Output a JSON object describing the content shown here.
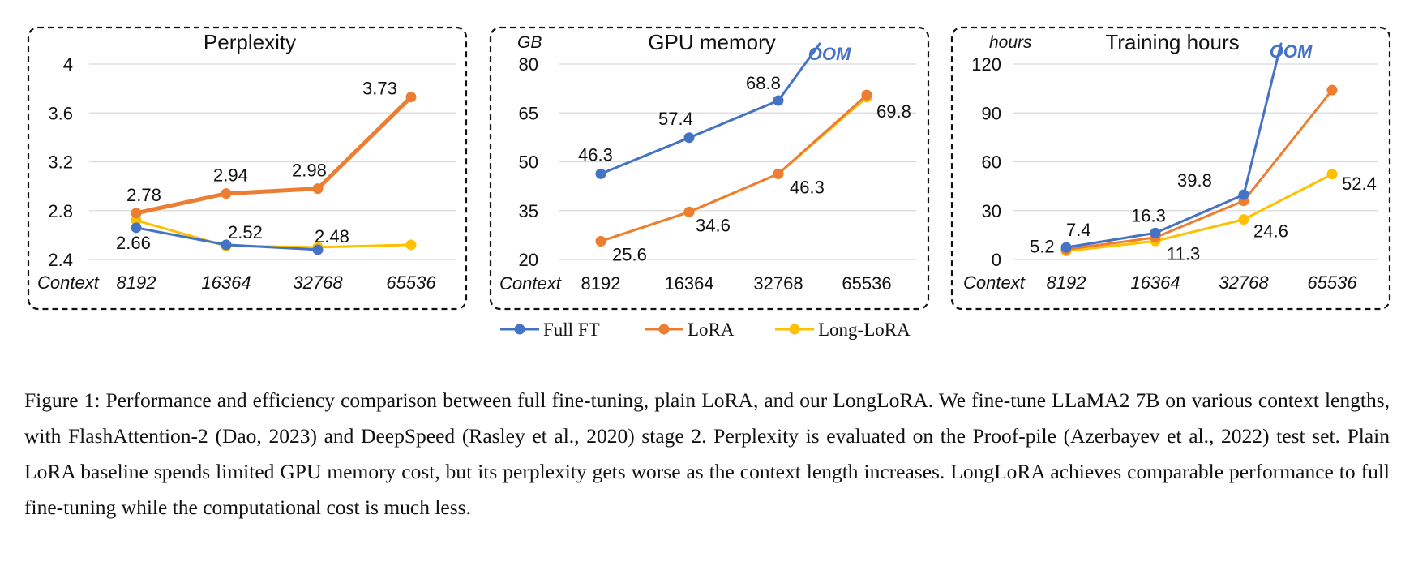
{
  "chart_data": [
    {
      "type": "line",
      "title": "Perplexity",
      "unit": "",
      "xlabel": "Context",
      "xlabel_italic": true,
      "categories": [
        "8192",
        "16364",
        "32768",
        "65536"
      ],
      "ylim": [
        2.4,
        4
      ],
      "yticks": [
        "2.4",
        "2.8",
        "3.2",
        "3.6",
        "4"
      ],
      "series": [
        {
          "name": "Full FT",
          "color": "#4472C4",
          "width": 3,
          "values": [
            2.66,
            2.52,
            2.48,
            null
          ],
          "labels": [
            "2.66",
            "2.52",
            "2.48",
            ""
          ]
        },
        {
          "name": "LoRA",
          "color": "#ED7D31",
          "width": 5,
          "values": [
            2.78,
            2.94,
            2.98,
            3.73
          ],
          "labels": [
            "2.78",
            "2.94",
            "2.98",
            "3.73"
          ]
        },
        {
          "name": "Long-LoRA",
          "color": "#FFC000",
          "width": 3,
          "values": [
            2.72,
            2.51,
            2.5,
            2.52
          ],
          "labels": [
            "",
            "",
            "",
            ""
          ]
        }
      ],
      "oom": ""
    },
    {
      "type": "line",
      "title": "GPU memory",
      "unit": "GB",
      "xlabel": "Context",
      "xlabel_italic": false,
      "categories": [
        "8192",
        "16364",
        "32768",
        "65536"
      ],
      "ylim": [
        20,
        80
      ],
      "yticks": [
        "20",
        "35",
        "50",
        "65",
        "80"
      ],
      "series": [
        {
          "name": "Full FT",
          "color": "#4472C4",
          "width": 3,
          "values": [
            46.3,
            57.4,
            68.8,
            null
          ],
          "labels": [
            "46.3",
            "57.4",
            "68.8",
            ""
          ]
        },
        {
          "name": "LoRA",
          "color": "#ED7D31",
          "width": 3,
          "values": [
            25.6,
            34.6,
            46.3,
            70.5
          ],
          "labels": [
            "",
            "",
            "",
            ""
          ]
        },
        {
          "name": "Long-LoRA",
          "color": "#FFC000",
          "width": 3,
          "values": [
            25.6,
            34.6,
            46.3,
            69.8
          ],
          "labels": [
            "25.6",
            "34.6",
            "46.3",
            "69.8"
          ]
        }
      ],
      "oom": "OOM"
    },
    {
      "type": "line",
      "title": "Training hours",
      "unit": "hours",
      "xlabel": "Context",
      "xlabel_italic": true,
      "categories": [
        "8192",
        "16364",
        "32768",
        "65536"
      ],
      "ylim": [
        0,
        120
      ],
      "yticks": [
        "0",
        "30",
        "60",
        "90",
        "120"
      ],
      "series": [
        {
          "name": "Full FT",
          "color": "#4472C4",
          "width": 3,
          "values": [
            7.4,
            16.3,
            39.8,
            null
          ],
          "labels": [
            "7.4",
            "16.3",
            "39.8",
            ""
          ]
        },
        {
          "name": "LoRA",
          "color": "#ED7D31",
          "width": 3,
          "values": [
            6.2,
            13.5,
            36,
            104
          ],
          "labels": [
            "",
            "",
            "",
            ""
          ]
        },
        {
          "name": "Long-LoRA",
          "color": "#FFC000",
          "width": 3,
          "values": [
            5.2,
            11.3,
            24.6,
            52.4
          ],
          "labels": [
            "5.2",
            "11.3",
            "24.6",
            "52.4"
          ]
        }
      ],
      "oom": "OOM"
    }
  ],
  "legend": [
    {
      "name": "Full FT",
      "color": "#4472C4"
    },
    {
      "name": "LoRA",
      "color": "#ED7D31"
    },
    {
      "name": "Long-LoRA",
      "color": "#FFC000"
    }
  ],
  "caption": {
    "text_1": "Figure 1: Performance and efficiency comparison between full fine-tuning, plain LoRA, and our LongLoRA. We fine-tune LLaMA2 7B on various context lengths, with FlashAttention-2 (Dao, ",
    "cite_1": "2023",
    "text_2": ") and DeepSpeed  (Rasley et al., ",
    "cite_2": "2020",
    "text_3": ") stage 2. Perplexity is evaluated on the Proof-pile  (Azerbayev et al., ",
    "cite_3": "2022",
    "text_4": ") test set. Plain LoRA baseline spends limited GPU memory cost, but its perplexity gets worse as the context length increases. LongLoRA achieves comparable performance to full fine-tuning while the computational cost is much less."
  }
}
